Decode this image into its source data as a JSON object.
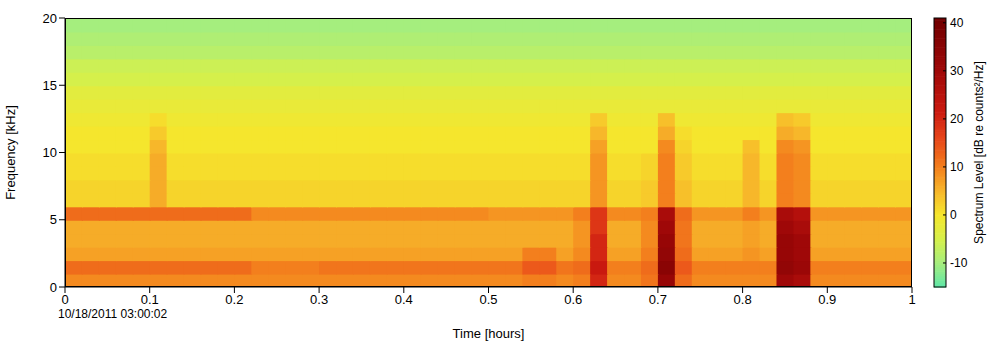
{
  "chart_data": {
    "type": "heatmap",
    "x_label": "Time [hours]",
    "y_label": "Frequency [kHz]",
    "annotation": "10/18/2011 03:00:02",
    "xlim": [
      0,
      1
    ],
    "xticks": [
      0,
      0.1,
      0.2,
      0.3,
      0.4,
      0.5,
      0.6,
      0.7,
      0.8,
      0.9,
      1
    ],
    "ylim": [
      0,
      20
    ],
    "yticks": [
      0,
      5,
      10,
      15,
      20
    ],
    "x": [
      0.01,
      0.03,
      0.05,
      0.07,
      0.09,
      0.11,
      0.13,
      0.15,
      0.17,
      0.19,
      0.21,
      0.23,
      0.25,
      0.27,
      0.29,
      0.31,
      0.33,
      0.35,
      0.37,
      0.39,
      0.41,
      0.43,
      0.45,
      0.47,
      0.49,
      0.51,
      0.53,
      0.55,
      0.57,
      0.59,
      0.61,
      0.63,
      0.65,
      0.67,
      0.69,
      0.71,
      0.73,
      0.75,
      0.77,
      0.79,
      0.81,
      0.83,
      0.85,
      0.87,
      0.89,
      0.91,
      0.93,
      0.95,
      0.97,
      0.99
    ],
    "y": [
      0.5,
      1.5,
      2.5,
      3.5,
      4.5,
      5.5,
      6.5,
      7.5,
      8.5,
      9.5,
      10.5,
      11.5,
      12.5,
      13.5,
      14.5,
      15.5,
      16.5,
      17.5,
      18.5,
      19.5
    ],
    "cells": [
      [
        9,
        9,
        9,
        9,
        9,
        9,
        9,
        9,
        9,
        9,
        9,
        9,
        9,
        9,
        9,
        9,
        9,
        9,
        9,
        9,
        9,
        9,
        9,
        9,
        9,
        9,
        9,
        10,
        10,
        9,
        10,
        20,
        9,
        9,
        11,
        32,
        12,
        9,
        9,
        9,
        9,
        9,
        30,
        28,
        9,
        9,
        9,
        9,
        9,
        9
      ],
      [
        12,
        12,
        12,
        12,
        12,
        12,
        12,
        12,
        12,
        12,
        12,
        10,
        10,
        10,
        10,
        11,
        11,
        11,
        11,
        11,
        11,
        11,
        11,
        11,
        11,
        11,
        11,
        14,
        14,
        11,
        12,
        22,
        10,
        10,
        12,
        35,
        14,
        10,
        10,
        10,
        10,
        10,
        33,
        31,
        10,
        10,
        10,
        10,
        10,
        10
      ],
      [
        7,
        7,
        7,
        7,
        7,
        7,
        7,
        7,
        7,
        7,
        7,
        7,
        7,
        7,
        7,
        7,
        7,
        7,
        7,
        7,
        7,
        7,
        7,
        7,
        7,
        7,
        7,
        10,
        10,
        7,
        9,
        20,
        7,
        7,
        10,
        33,
        12,
        7,
        7,
        7,
        8,
        7,
        32,
        30,
        7,
        7,
        7,
        7,
        7,
        7
      ],
      [
        6,
        6,
        6,
        6,
        6,
        6,
        6,
        6,
        6,
        6,
        6,
        6,
        6,
        6,
        6,
        6,
        6,
        6,
        6,
        6,
        6,
        6,
        6,
        6,
        6,
        6,
        6,
        6,
        6,
        6,
        8,
        20,
        6,
        6,
        9,
        32,
        11,
        6,
        6,
        6,
        7,
        6,
        32,
        30,
        6,
        6,
        6,
        6,
        6,
        6
      ],
      [
        6,
        6,
        6,
        6,
        6,
        6,
        6,
        6,
        6,
        6,
        6,
        6,
        6,
        6,
        6,
        6,
        6,
        6,
        6,
        6,
        6,
        6,
        6,
        6,
        6,
        6,
        6,
        6,
        6,
        6,
        8,
        18,
        6,
        6,
        9,
        30,
        11,
        6,
        6,
        6,
        7,
        6,
        30,
        28,
        6,
        6,
        6,
        6,
        6,
        6
      ],
      [
        12,
        12,
        12,
        12,
        12,
        12,
        12,
        12,
        12,
        12,
        12,
        9,
        9,
        9,
        9,
        9,
        9,
        9,
        9,
        9,
        9,
        9,
        9,
        9,
        9,
        8,
        8,
        8,
        8,
        8,
        10,
        18,
        9,
        9,
        10,
        28,
        12,
        8,
        8,
        8,
        10,
        8,
        28,
        26,
        8,
        8,
        8,
        8,
        8,
        8
      ],
      [
        2,
        2,
        2,
        2,
        2,
        6,
        2,
        2,
        2,
        2,
        2,
        2,
        2,
        2,
        2,
        2,
        2,
        2,
        2,
        2,
        2,
        2,
        2,
        2,
        2,
        2,
        2,
        2,
        2,
        2,
        2,
        8,
        2,
        2,
        3,
        10,
        4,
        2,
        2,
        2,
        5,
        2,
        10,
        9,
        2,
        2,
        2,
        2,
        2,
        2
      ],
      [
        2,
        2,
        2,
        2,
        2,
        6,
        2,
        2,
        2,
        2,
        2,
        2,
        2,
        2,
        2,
        2,
        2,
        2,
        2,
        2,
        2,
        2,
        2,
        2,
        2,
        2,
        2,
        2,
        2,
        2,
        2,
        8,
        2,
        2,
        3,
        10,
        4,
        2,
        2,
        2,
        5,
        2,
        10,
        9,
        2,
        2,
        2,
        2,
        2,
        2
      ],
      [
        1,
        1,
        1,
        1,
        1,
        6,
        1,
        1,
        1,
        1,
        1,
        1,
        1,
        1,
        1,
        1,
        1,
        1,
        1,
        1,
        1,
        1,
        1,
        1,
        1,
        1,
        1,
        1,
        1,
        1,
        1,
        8,
        1,
        1,
        2,
        10,
        3,
        1,
        1,
        1,
        5,
        1,
        10,
        9,
        1,
        1,
        1,
        1,
        1,
        1
      ],
      [
        1,
        1,
        1,
        1,
        1,
        6,
        1,
        1,
        1,
        1,
        1,
        1,
        1,
        1,
        1,
        1,
        1,
        1,
        1,
        1,
        1,
        1,
        1,
        1,
        1,
        1,
        1,
        1,
        1,
        1,
        1,
        8,
        1,
        1,
        2,
        10,
        3,
        1,
        1,
        1,
        5,
        1,
        10,
        9,
        1,
        1,
        1,
        1,
        1,
        1
      ],
      [
        0,
        0,
        0,
        0,
        0,
        5,
        0,
        0,
        0,
        0,
        0,
        0,
        0,
        0,
        0,
        0,
        0,
        0,
        0,
        0,
        0,
        0,
        0,
        0,
        0,
        0,
        0,
        0,
        0,
        0,
        0,
        7,
        0,
        0,
        0,
        9,
        2,
        0,
        0,
        0,
        4,
        0,
        9,
        8,
        0,
        0,
        0,
        0,
        0,
        0
      ],
      [
        0,
        0,
        0,
        0,
        0,
        3,
        0,
        0,
        0,
        0,
        0,
        0,
        0,
        0,
        0,
        0,
        0,
        0,
        0,
        0,
        0,
        0,
        0,
        0,
        0,
        0,
        0,
        0,
        0,
        0,
        0,
        5,
        0,
        0,
        0,
        6,
        1,
        0,
        0,
        0,
        0,
        0,
        6,
        5,
        0,
        0,
        0,
        0,
        0,
        0
      ],
      [
        -1,
        -1,
        -1,
        -1,
        -1,
        1,
        -1,
        -1,
        -1,
        -1,
        -1,
        -1,
        -1,
        -1,
        -1,
        -1,
        -1,
        -1,
        -1,
        -1,
        -1,
        -1,
        -1,
        -1,
        -1,
        -1,
        -1,
        -1,
        -1,
        -1,
        -1,
        3,
        -1,
        -1,
        -1,
        4,
        -1,
        -1,
        -1,
        -1,
        -1,
        -1,
        4,
        3,
        -1,
        -1,
        -1,
        -1,
        -1,
        -1
      ],
      [
        -2,
        -2,
        -2,
        -2,
        -2,
        -2,
        -2,
        -2,
        -2,
        -2,
        -2,
        -2,
        -2,
        -2,
        -2,
        -2,
        -2,
        -2,
        -2,
        -2,
        -2,
        -2,
        -2,
        -2,
        -2,
        -2,
        -2,
        -2,
        -2,
        -2,
        -2,
        -2,
        -2,
        -2,
        -2,
        -2,
        -2,
        -2,
        -2,
        -2,
        -2,
        -2,
        -2,
        -2,
        -2,
        -2,
        -2,
        -2,
        -2,
        -2
      ],
      [
        -3,
        -3,
        -3,
        -3,
        -3,
        -3,
        -3,
        -3,
        -3,
        -3,
        -3,
        -3,
        -3,
        -3,
        -3,
        -3,
        -3,
        -3,
        -3,
        -3,
        -3,
        -3,
        -3,
        -3,
        -3,
        -3,
        -3,
        -3,
        -3,
        -3,
        -3,
        -3,
        -3,
        -3,
        -3,
        -3,
        -3,
        -3,
        -3,
        -3,
        -3,
        -3,
        -3,
        -3,
        -3,
        -3,
        -3,
        -3,
        -3,
        -3
      ],
      [
        -5,
        -5,
        -5,
        -5,
        -5,
        -5,
        -5,
        -5,
        -5,
        -5,
        -5,
        -5,
        -5,
        -5,
        -5,
        -5,
        -5,
        -5,
        -5,
        -5,
        -5,
        -5,
        -5,
        -5,
        -5,
        -5,
        -5,
        -5,
        -5,
        -5,
        -5,
        -5,
        -5,
        -5,
        -5,
        -5,
        -5,
        -5,
        -5,
        -5,
        -5,
        -5,
        -5,
        -5,
        -5,
        -5,
        -5,
        -5,
        -5,
        -5
      ],
      [
        -6,
        -6,
        -6,
        -6,
        -6,
        -6,
        -6,
        -6,
        -6,
        -6,
        -6,
        -6,
        -6,
        -6,
        -6,
        -6,
        -6,
        -6,
        -6,
        -6,
        -6,
        -6,
        -6,
        -6,
        -6,
        -6,
        -6,
        -6,
        -6,
        -6,
        -6,
        -6,
        -6,
        -6,
        -6,
        -6,
        -6,
        -6,
        -6,
        -6,
        -6,
        -6,
        -6,
        -6,
        -6,
        -6,
        -6,
        -6,
        -6,
        -6
      ],
      [
        -8,
        -8,
        -8,
        -8,
        -8,
        -8,
        -8,
        -8,
        -8,
        -8,
        -8,
        -8,
        -8,
        -8,
        -8,
        -8,
        -8,
        -8,
        -8,
        -8,
        -8,
        -8,
        -8,
        -8,
        -8,
        -8,
        -8,
        -8,
        -8,
        -8,
        -8,
        -8,
        -8,
        -8,
        -8,
        -8,
        -8,
        -8,
        -8,
        -8,
        -8,
        -8,
        -8,
        -8,
        -8,
        -8,
        -8,
        -8,
        -8,
        -8
      ],
      [
        -9,
        -9,
        -9,
        -9,
        -9,
        -9,
        -9,
        -9,
        -9,
        -9,
        -9,
        -9,
        -9,
        -9,
        -9,
        -9,
        -9,
        -9,
        -9,
        -9,
        -9,
        -9,
        -9,
        -9,
        -9,
        -9,
        -9,
        -9,
        -9,
        -9,
        -9,
        -9,
        -9,
        -9,
        -9,
        -9,
        -9,
        -9,
        -9,
        -9,
        -9,
        -9,
        -9,
        -9,
        -9,
        -9,
        -9,
        -9,
        -9,
        -9
      ],
      [
        -10,
        -10,
        -10,
        -10,
        -10,
        -10,
        -10,
        -10,
        -10,
        -10,
        -10,
        -10,
        -10,
        -10,
        -10,
        -10,
        -10,
        -10,
        -10,
        -10,
        -10,
        -10,
        -10,
        -10,
        -10,
        -10,
        -10,
        -10,
        -10,
        -10,
        -10,
        -10,
        -10,
        -10,
        -10,
        -10,
        -10,
        -10,
        -10,
        -10,
        -10,
        -10,
        -10,
        -10,
        -10,
        -10,
        -10,
        -10,
        -10,
        -10
      ]
    ],
    "colorbar": {
      "label": "Spectrum Level [dB re counts²/Hz]",
      "range": [
        -15,
        41
      ],
      "ticks": [
        -10,
        0,
        10,
        20,
        30,
        40
      ]
    }
  }
}
